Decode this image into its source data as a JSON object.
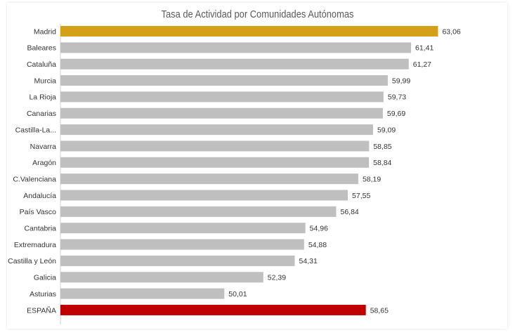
{
  "chart_data": {
    "type": "bar",
    "orientation": "horizontal",
    "title": "Tasa de Actividad por Comunidades  Autónomas",
    "categories": [
      "Madrid",
      "Baleares",
      "Cataluña",
      "Murcia",
      "La Rioja",
      "Canarias",
      "Castilla-La...",
      "Navarra",
      "Aragón",
      "C.Valenciana",
      "Andalucía",
      "País Vasco",
      "Cantabria",
      "Extremadura",
      "Castilla y León",
      "Galicia",
      "Asturias",
      "ESPAÑA"
    ],
    "values": [
      63.06,
      61.41,
      61.27,
      59.99,
      59.73,
      59.69,
      59.09,
      58.85,
      58.84,
      58.19,
      57.55,
      56.84,
      54.96,
      54.88,
      54.31,
      52.39,
      50.01,
      58.65
    ],
    "value_labels": [
      "63,06",
      "61,41",
      "61,27",
      "59,99",
      "59,73",
      "59,69",
      "59,09",
      "58,85",
      "58,84",
      "58,19",
      "57,55",
      "56,84",
      "54,96",
      "54,88",
      "54,31",
      "52,39",
      "50,01",
      "58,65"
    ],
    "highlight": {
      "Madrid": "#D4A017",
      "ESPAÑA": "#C00000"
    },
    "default_color": "#BFBFBF",
    "xlim": [
      40,
      66
    ],
    "grid": false,
    "legend": "none"
  }
}
